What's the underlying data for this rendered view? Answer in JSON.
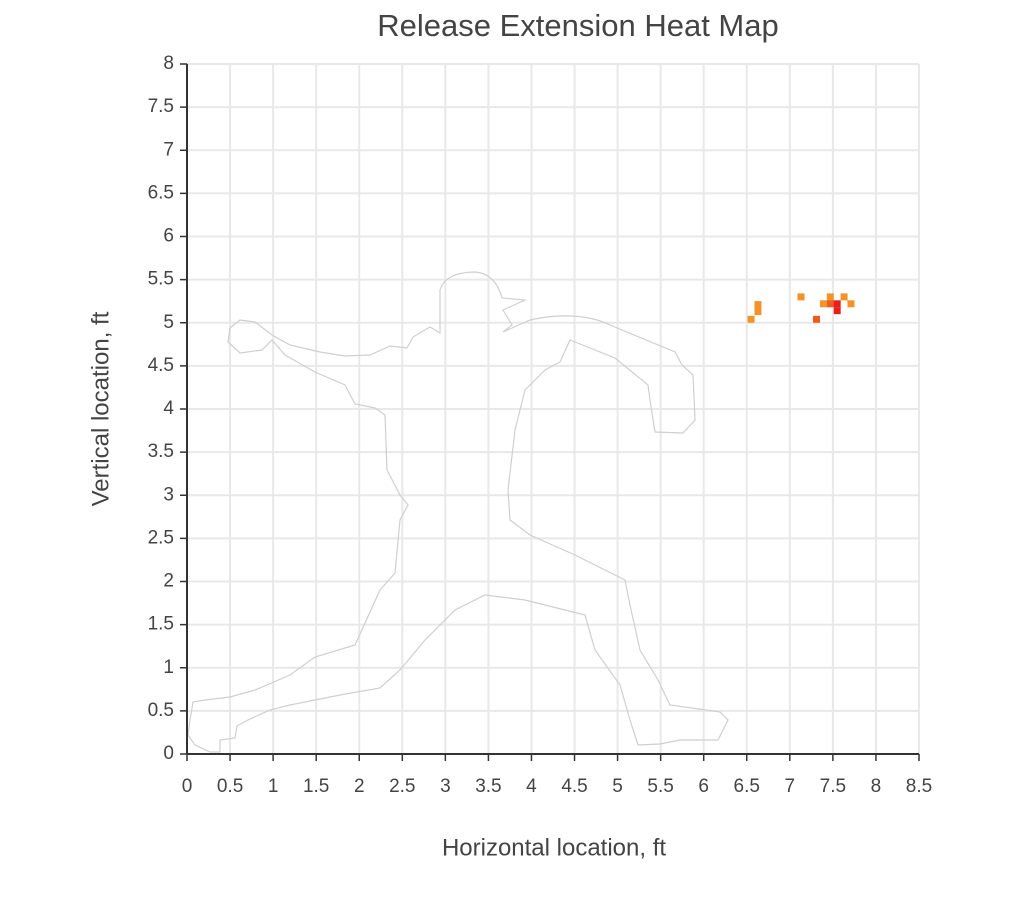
{
  "chart_data": {
    "type": "heatmap",
    "title": "Release Extension Heat Map",
    "x_label": "Horizontal location, ft",
    "y_label": "Vertical location, ft",
    "xlim": [
      0,
      8.5
    ],
    "ylim": [
      0,
      8
    ],
    "xticks": [
      0,
      0.5,
      1,
      1.5,
      2,
      2.5,
      3,
      3.5,
      4,
      4.5,
      5,
      5.5,
      6,
      6.5,
      7,
      7.5,
      8,
      8.5
    ],
    "yticks": [
      0,
      0.5,
      1,
      1.5,
      2,
      2.5,
      3,
      3.5,
      4,
      4.5,
      5,
      5.5,
      6,
      6.5,
      7,
      7.5,
      8
    ],
    "grid": true,
    "x": [
      6.55,
      6.63,
      6.63,
      7.13,
      7.31,
      7.39,
      7.47,
      7.47,
      7.55,
      7.55,
      7.63,
      7.71
    ],
    "values": [
      5.04,
      5.21,
      5.13,
      5.3,
      5.04,
      5.22,
      5.3,
      5.22,
      5.22,
      5.14,
      5.3,
      5.22
    ],
    "colors": [
      "#f4922a",
      "#f4922a",
      "#f4922a",
      "#f4922a",
      "#ef5a1e",
      "#f4922a",
      "#f4922a",
      "#ef5a1e",
      "#e8201a",
      "#e8201a",
      "#f4922a",
      "#f4922a"
    ]
  }
}
